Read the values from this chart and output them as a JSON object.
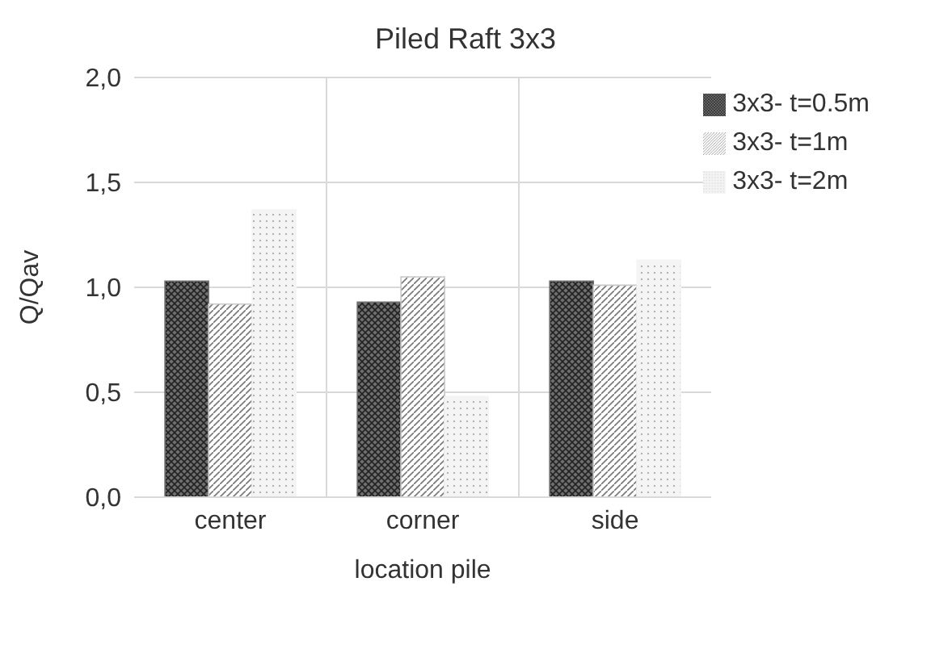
{
  "chart_data": {
    "type": "bar",
    "title": "Piled Raft 3x3",
    "xlabel": "location pile",
    "ylabel": "Q/Qav",
    "categories": [
      "center",
      "corner",
      "side"
    ],
    "series": [
      {
        "name": "3x3- t=0.5m",
        "color": "#6e6e6e",
        "values": [
          1.03,
          0.93,
          1.03
        ]
      },
      {
        "name": "3x3- t=1m",
        "color": "#c8c8c8",
        "values": [
          0.92,
          1.05,
          1.01
        ]
      },
      {
        "name": "3x3- t=2m",
        "color": "#f4f4f4",
        "values": [
          1.37,
          0.48,
          1.13
        ]
      }
    ],
    "ylim": [
      0,
      2
    ],
    "yticks": [
      {
        "value": 0,
        "label": "0,0"
      },
      {
        "value": 0.5,
        "label": "0,5"
      },
      {
        "value": 1,
        "label": "1,0"
      },
      {
        "value": 1.5,
        "label": "1,5"
      },
      {
        "value": 2,
        "label": "2,0"
      }
    ],
    "grid": true,
    "legend": "top right"
  }
}
